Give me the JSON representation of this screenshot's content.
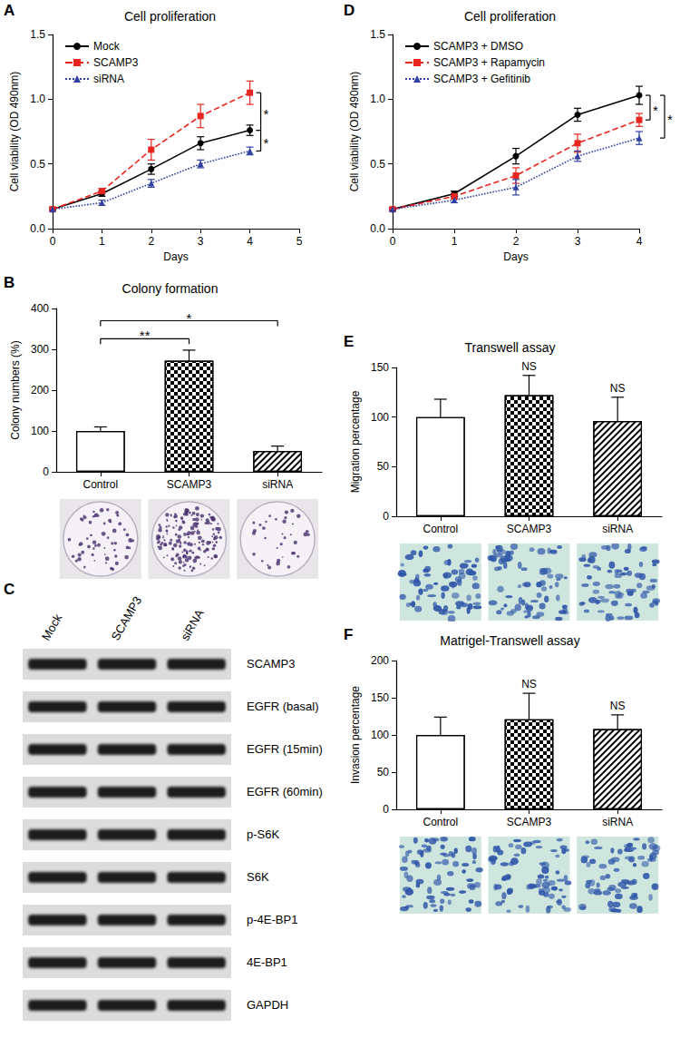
{
  "chart_data": [
    {
      "panel": "A",
      "type": "line",
      "title": "Cell proliferation",
      "x_label": "Days",
      "y_label": "Cell viability (OD 490nm)",
      "x": [
        0,
        1,
        2,
        3,
        4
      ],
      "xlim": [
        0,
        5
      ],
      "xticks": [
        0,
        1,
        2,
        3,
        4,
        5
      ],
      "ylim": [
        0,
        1.5
      ],
      "yticks": [
        {
          "value": 0,
          "label": "0.0"
        },
        0.5,
        {
          "value": 1,
          "label": "1.0"
        },
        1.5
      ],
      "grid": false,
      "legend": "upper left",
      "series": [
        {
          "name": "Mock",
          "color": "#000000",
          "marker": "circle",
          "line_style": "solid",
          "values": [
            0.15,
            0.27,
            0.46,
            0.66,
            0.76
          ],
          "errors": [
            0.01,
            0.02,
            0.04,
            0.05,
            0.04
          ]
        },
        {
          "name": "SCAMP3",
          "color": "#e8251f",
          "marker": "square",
          "line_style": "dashed",
          "values": [
            0.15,
            0.29,
            0.61,
            0.87,
            1.05
          ],
          "errors": [
            0.01,
            0.02,
            0.08,
            0.09,
            0.09
          ]
        },
        {
          "name": "siRNA",
          "color": "#3040a0",
          "marker": "triangle",
          "line_style": "dotted",
          "values": [
            0.15,
            0.2,
            0.35,
            0.5,
            0.6
          ],
          "errors": [
            0.01,
            0.02,
            0.03,
            0.03,
            0.03
          ]
        }
      ],
      "annotations": [
        {
          "text": "*",
          "x": 4,
          "from": 1.05,
          "to": 0.76
        },
        {
          "text": "*",
          "x": 4,
          "from": 0.76,
          "to": 0.6
        }
      ]
    },
    {
      "panel": "B",
      "type": "bar",
      "title": "Colony formation",
      "y_label": "Colony numbers (%)",
      "categories": [
        "Control",
        "SCAMP3",
        "siRNA"
      ],
      "values": [
        100,
        272,
        51
      ],
      "errors": [
        10,
        26,
        12
      ],
      "color": "#ffffff",
      "ylim": [
        0,
        400
      ],
      "yticks": [
        0,
        100,
        200,
        300,
        400
      ],
      "grid": false,
      "annotations": [
        {
          "text": "**",
          "from": "Control",
          "to": "SCAMP3",
          "y": 326
        },
        {
          "text": "*",
          "from": "Control",
          "to": "siRNA",
          "y": 370
        }
      ]
    },
    {
      "panel": "D",
      "type": "line",
      "title": "Cell proliferation",
      "x_label": "Days",
      "y_label": "Cell viability (OD 490nm)",
      "x": [
        0,
        1,
        2,
        3,
        4
      ],
      "xlim": [
        0,
        4
      ],
      "xticks": [
        0,
        1,
        2,
        3,
        4
      ],
      "ylim": [
        0,
        1.5
      ],
      "yticks": [
        {
          "value": 0,
          "label": "0.0"
        },
        0.5,
        {
          "value": 1,
          "label": "1.0"
        },
        1.5
      ],
      "grid": false,
      "legend": "upper left",
      "series": [
        {
          "name": "SCAMP3 + DMSO",
          "color": "#000000",
          "marker": "circle",
          "line_style": "solid",
          "values": [
            0.15,
            0.27,
            0.56,
            0.88,
            1.03
          ],
          "errors": [
            0.01,
            0.02,
            0.06,
            0.05,
            0.07
          ]
        },
        {
          "name": "SCAMP3 + Rapamycin",
          "color": "#e8251f",
          "marker": "square",
          "line_style": "dashed",
          "values": [
            0.15,
            0.25,
            0.41,
            0.66,
            0.84
          ],
          "errors": [
            0.01,
            0.02,
            0.06,
            0.07,
            0.05
          ]
        },
        {
          "name": "SCAMP3 + Gefitinib",
          "color": "#3040a0",
          "marker": "triangle",
          "line_style": "dotted",
          "values": [
            0.15,
            0.22,
            0.32,
            0.56,
            0.7
          ],
          "errors": [
            0.01,
            0.02,
            0.06,
            0.04,
            0.05
          ]
        }
      ],
      "annotations": [
        {
          "text": "*",
          "x": 4,
          "from": 1.03,
          "to": 0.84
        },
        {
          "text": "*",
          "x": 4,
          "from": 1.03,
          "to": 0.7
        }
      ]
    },
    {
      "panel": "E",
      "type": "bar",
      "title": "Transwell assay",
      "y_label": "Migration percentage",
      "categories": [
        "Control",
        "SCAMP3",
        "siRNA"
      ],
      "values": [
        100,
        122,
        96
      ],
      "errors": [
        18,
        20,
        24
      ],
      "color": "#ffffff",
      "ylim": [
        0,
        150
      ],
      "yticks": [
        0,
        50,
        100,
        150
      ],
      "grid": false,
      "annotations": [
        {
          "text": "NS",
          "category": "SCAMP3"
        },
        {
          "text": "NS",
          "category": "siRNA"
        }
      ]
    },
    {
      "panel": "F",
      "type": "bar",
      "title": "Matrigel-Transwell assay",
      "y_label": "Invasion percentage",
      "categories": [
        "Control",
        "SCAMP3",
        "siRNA"
      ],
      "values": [
        100,
        121,
        108
      ],
      "errors": [
        24,
        35,
        19
      ],
      "color": "#ffffff",
      "ylim": [
        0,
        200
      ],
      "yticks": [
        0,
        50,
        100,
        150,
        200
      ],
      "grid": false,
      "annotations": [
        {
          "text": "NS",
          "category": "SCAMP3"
        },
        {
          "text": "NS",
          "category": "siRNA"
        }
      ]
    }
  ],
  "blot": {
    "panel": "C",
    "lanes": [
      "Mock",
      "SCAMP3",
      "siRNA"
    ],
    "rows": [
      "SCAMP3",
      "EGFR (basal)",
      "EGFR (15min)",
      "EGFR (60min)",
      "p-S6K",
      "S6K",
      "p-4E-BP1",
      "4E-BP1",
      "GAPDH"
    ]
  }
}
